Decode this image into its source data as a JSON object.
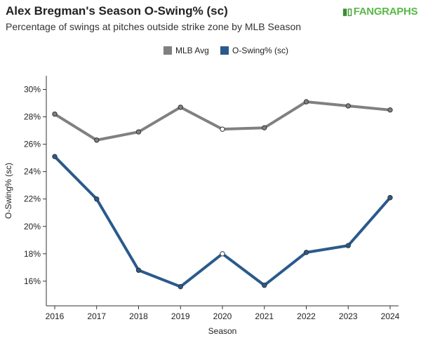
{
  "header": {
    "title": "Alex Bregman's Season O-Swing% (sc)",
    "subtitle": "Percentage of swings at pitches outside strike zone by MLB Season",
    "brand": "FANGRAPHS"
  },
  "colors": {
    "mlb_avg": "#808080",
    "player": "#2a5a8c",
    "axis": "#333333"
  },
  "chart_data": {
    "type": "line",
    "title": "Alex Bregman's Season O-Swing% (sc)",
    "subtitle": "Percentage of swings at pitches outside strike zone by MLB Season",
    "xlabel": "Season",
    "ylabel": "O-Swing% (sc)",
    "x": [
      2016,
      2017,
      2018,
      2019,
      2020,
      2021,
      2022,
      2023,
      2024
    ],
    "x_tick_labels": [
      "2016",
      "2017",
      "2018",
      "2019",
      "2020",
      "2021",
      "2022",
      "2023",
      "2024"
    ],
    "ylim": [
      14.2,
      31.0
    ],
    "y_ticks": [
      16,
      18,
      20,
      22,
      24,
      26,
      28,
      30
    ],
    "y_tick_labels": [
      "16%",
      "18%",
      "20%",
      "22%",
      "24%",
      "26%",
      "28%",
      "30%"
    ],
    "legend_position": "top-center",
    "grid": false,
    "series": [
      {
        "name": "MLB Avg",
        "values": [
          28.2,
          26.3,
          26.9,
          28.7,
          27.1,
          27.2,
          29.1,
          28.8,
          28.5
        ]
      },
      {
        "name": "O-Swing% (sc)",
        "values": [
          25.1,
          22.0,
          16.8,
          15.6,
          18.0,
          15.7,
          18.1,
          18.6,
          22.1
        ]
      }
    ],
    "open_marker_years": [
      2020
    ]
  }
}
